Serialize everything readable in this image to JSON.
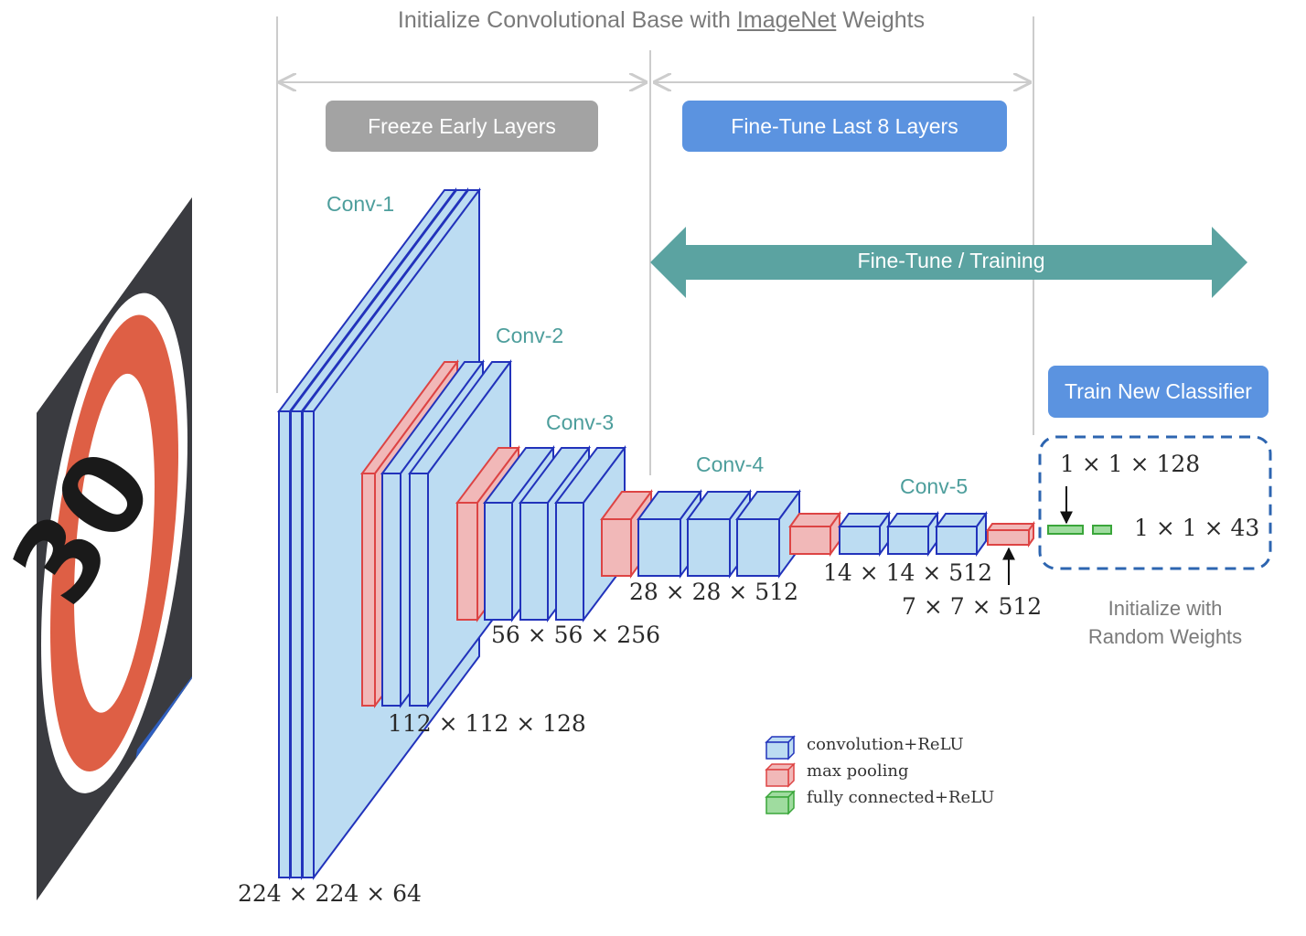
{
  "header": {
    "title_before": "Initialize Convolutional Base with ",
    "title_link": "ImageNet",
    "title_after": " Weights"
  },
  "phases": {
    "freeze": "Freeze Early Layers",
    "finetune": "Fine-Tune Last 8 Layers",
    "training_arrow": "Fine-Tune / Training",
    "classifier": "Train New Classifier"
  },
  "layers": {
    "conv1": "Conv-1",
    "conv2": "Conv-2",
    "conv3": "Conv-3",
    "conv4": "Conv-4",
    "conv5": "Conv-5"
  },
  "dimensions": {
    "d1": "224 × 224 × 64",
    "d2": "112 × 112 × 128",
    "d3": "56 × 56 × 256",
    "d4": "28 × 28 × 512",
    "d5": "14 × 14 × 512",
    "d6": "7 × 7 × 512",
    "fc1": "1 × 1 × 128",
    "fc2": "1 × 1 × 43"
  },
  "init_note": [
    "Initialize with",
    "Random Weights"
  ],
  "legend": {
    "conv": "convolution+ReLU",
    "pool": "max pooling",
    "fc": "fully connected+ReLU"
  },
  "input_image": {
    "sign_text": "30"
  },
  "colors": {
    "conv_fill": "#bcdcf2",
    "conv_stroke": "#2233bb",
    "pool_fill": "#f1b8b8",
    "pool_stroke": "#dd4444",
    "fc_fill": "#9fdc9f",
    "fc_stroke": "#3aa63a",
    "teal": "#5ba3a1",
    "pill_blue": "#5b93e0",
    "pill_grey": "#a3a3a3"
  }
}
